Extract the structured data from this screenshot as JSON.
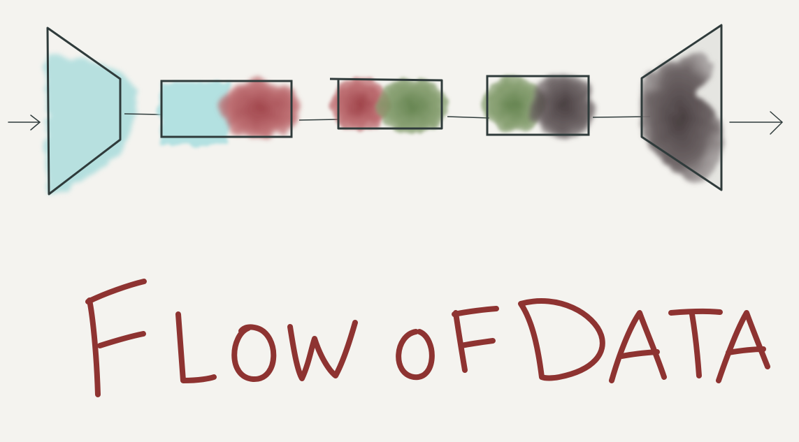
{
  "title": "FLOW OF DATA",
  "colors": {
    "background": "#f4f3ef",
    "outline": "#2f3b3b",
    "cyan": "#a9dcdc",
    "red": "#a8474d",
    "green": "#6a8a53",
    "dark": "#4a4143",
    "title_ink": "#8e3331"
  },
  "diagram": {
    "stages": [
      {
        "kind": "expander",
        "fill": "cyan"
      },
      {
        "kind": "block",
        "fills": [
          "cyan",
          "red"
        ]
      },
      {
        "kind": "block",
        "fills": [
          "red",
          "green"
        ]
      },
      {
        "kind": "block",
        "fills": [
          "green",
          "dark"
        ]
      },
      {
        "kind": "expander",
        "fill": "dark"
      }
    ],
    "arrows": [
      "input-arrow",
      "output-arrow"
    ]
  }
}
